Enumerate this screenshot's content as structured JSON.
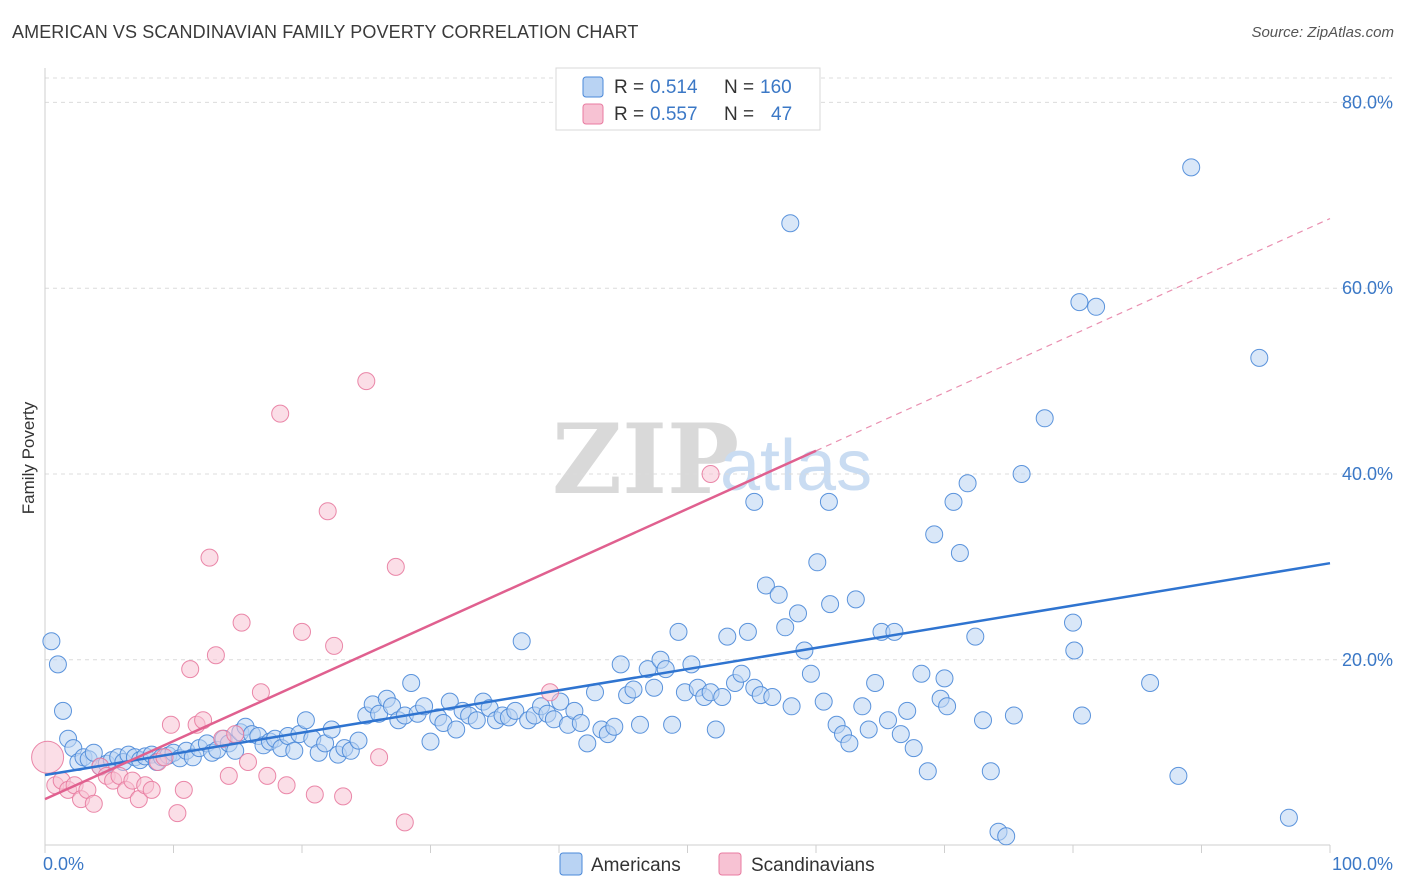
{
  "title": "AMERICAN VS SCANDINAVIAN FAMILY POVERTY CORRELATION CHART",
  "source": "Source: ZipAtlas.com",
  "watermark": {
    "zip": "ZIP",
    "atlas": "atlas"
  },
  "colors": {
    "americans": "#4a88d8",
    "americans_fill": "#b9d3f3",
    "americans_line": "#2f74d0",
    "scandinavians": "#e87ba0",
    "scandinavians_fill": "#f7c2d3",
    "scandinavians_line": "#e0608f",
    "grid": "#dcdcdc",
    "axis_text": "#3b78c6"
  },
  "legend": {
    "rows": [
      {
        "r_label": "R = ",
        "r_value": "0.514",
        "n_label": "N = ",
        "n_value": "160"
      },
      {
        "r_label": "R = ",
        "r_value": "0.557",
        "n_label": "N = ",
        "n_value": "47"
      }
    ]
  },
  "bottom_legend": {
    "americans": "Americans",
    "scandinavians": "Scandinavians"
  },
  "chart_data": {
    "type": "scatter",
    "title": "AMERICAN VS SCANDINAVIAN FAMILY POVERTY CORRELATION CHART",
    "xlabel": "",
    "ylabel": "Family Poverty",
    "xlim": [
      0,
      100
    ],
    "ylim": [
      0,
      80
    ],
    "x_tick_labels": [
      "0.0%",
      "100.0%"
    ],
    "y_ticks": [
      20,
      40,
      60,
      80
    ],
    "y_tick_labels": [
      "20.0%",
      "40.0%",
      "60.0%",
      "80.0%"
    ],
    "grid": true,
    "series": [
      {
        "name": "Americans",
        "R": 0.514,
        "N": 160,
        "trend": {
          "x": [
            0,
            100
          ],
          "y": [
            7.6,
            30.4
          ],
          "dashed_extension": false
        },
        "points": [
          [
            0.5,
            22.0
          ],
          [
            1.0,
            19.5
          ],
          [
            1.4,
            14.5
          ],
          [
            1.8,
            11.5
          ],
          [
            2.2,
            10.5
          ],
          [
            2.6,
            9.0
          ],
          [
            3.0,
            9.5
          ],
          [
            3.4,
            9.3
          ],
          [
            3.8,
            10.0
          ],
          [
            4.3,
            8.5
          ],
          [
            4.8,
            8.8
          ],
          [
            5.2,
            9.2
          ],
          [
            5.7,
            9.5
          ],
          [
            6.1,
            9.0
          ],
          [
            6.5,
            9.8
          ],
          [
            7.0,
            9.5
          ],
          [
            7.4,
            9.2
          ],
          [
            7.8,
            9.6
          ],
          [
            8.3,
            9.8
          ],
          [
            8.7,
            9.0
          ],
          [
            9.1,
            9.5
          ],
          [
            9.6,
            9.7
          ],
          [
            10.0,
            10.0
          ],
          [
            10.5,
            9.4
          ],
          [
            11.0,
            10.2
          ],
          [
            11.5,
            9.5
          ],
          [
            12.0,
            10.5
          ],
          [
            12.6,
            11.0
          ],
          [
            13.0,
            10.0
          ],
          [
            13.4,
            10.3
          ],
          [
            13.9,
            11.5
          ],
          [
            14.3,
            11.0
          ],
          [
            14.8,
            10.2
          ],
          [
            15.2,
            12.2
          ],
          [
            15.6,
            12.8
          ],
          [
            16.1,
            12.0
          ],
          [
            16.6,
            11.8
          ],
          [
            17.0,
            10.8
          ],
          [
            17.5,
            11.2
          ],
          [
            17.9,
            11.5
          ],
          [
            18.4,
            10.5
          ],
          [
            18.9,
            11.8
          ],
          [
            19.4,
            10.2
          ],
          [
            19.8,
            12.0
          ],
          [
            20.3,
            13.5
          ],
          [
            20.8,
            11.5
          ],
          [
            21.3,
            10.0
          ],
          [
            21.8,
            11.0
          ],
          [
            22.3,
            12.5
          ],
          [
            22.8,
            9.8
          ],
          [
            23.3,
            10.5
          ],
          [
            23.8,
            10.2
          ],
          [
            24.4,
            11.3
          ],
          [
            25.0,
            14.0
          ],
          [
            25.5,
            15.2
          ],
          [
            26.0,
            14.2
          ],
          [
            26.6,
            15.8
          ],
          [
            27.0,
            15.0
          ],
          [
            27.5,
            13.5
          ],
          [
            28.0,
            14.0
          ],
          [
            28.5,
            17.5
          ],
          [
            29.0,
            14.2
          ],
          [
            29.5,
            15.0
          ],
          [
            30.0,
            11.2
          ],
          [
            30.6,
            13.8
          ],
          [
            31.0,
            13.2
          ],
          [
            31.5,
            15.5
          ],
          [
            32.0,
            12.5
          ],
          [
            32.5,
            14.5
          ],
          [
            33.0,
            14.0
          ],
          [
            33.6,
            13.5
          ],
          [
            34.1,
            15.5
          ],
          [
            34.6,
            14.8
          ],
          [
            35.1,
            13.5
          ],
          [
            35.6,
            14.0
          ],
          [
            36.1,
            13.8
          ],
          [
            36.6,
            14.5
          ],
          [
            37.1,
            22.0
          ],
          [
            37.6,
            13.5
          ],
          [
            38.1,
            14.0
          ],
          [
            38.6,
            15.0
          ],
          [
            39.1,
            14.2
          ],
          [
            39.6,
            13.6
          ],
          [
            40.1,
            15.5
          ],
          [
            40.7,
            13.0
          ],
          [
            41.2,
            14.5
          ],
          [
            41.7,
            13.2
          ],
          [
            42.2,
            11.0
          ],
          [
            42.8,
            16.5
          ],
          [
            43.3,
            12.5
          ],
          [
            43.8,
            12.0
          ],
          [
            44.3,
            12.8
          ],
          [
            44.8,
            19.5
          ],
          [
            45.3,
            16.2
          ],
          [
            45.8,
            16.8
          ],
          [
            46.3,
            13.0
          ],
          [
            46.9,
            19.0
          ],
          [
            47.4,
            17.0
          ],
          [
            47.9,
            20.0
          ],
          [
            48.3,
            19.0
          ],
          [
            48.8,
            13.0
          ],
          [
            49.3,
            23.0
          ],
          [
            49.8,
            16.5
          ],
          [
            50.3,
            19.5
          ],
          [
            50.8,
            17.0
          ],
          [
            51.3,
            16.0
          ],
          [
            51.8,
            16.5
          ],
          [
            52.2,
            12.5
          ],
          [
            52.7,
            16.0
          ],
          [
            53.1,
            22.5
          ],
          [
            53.7,
            17.5
          ],
          [
            54.2,
            18.5
          ],
          [
            54.7,
            23.0
          ],
          [
            55.2,
            17.0
          ],
          [
            55.7,
            16.2
          ],
          [
            56.1,
            28.0
          ],
          [
            56.6,
            16.0
          ],
          [
            57.1,
            27.0
          ],
          [
            57.6,
            23.5
          ],
          [
            58.1,
            15.0
          ],
          [
            58.6,
            25.0
          ],
          [
            59.1,
            21.0
          ],
          [
            59.6,
            18.5
          ],
          [
            60.1,
            30.5
          ],
          [
            60.6,
            15.5
          ],
          [
            61.1,
            26.0
          ],
          [
            61.6,
            13.0
          ],
          [
            62.1,
            12.0
          ],
          [
            62.6,
            11.0
          ],
          [
            63.1,
            26.5
          ],
          [
            63.6,
            15.0
          ],
          [
            64.1,
            12.5
          ],
          [
            64.6,
            17.5
          ],
          [
            65.1,
            23.0
          ],
          [
            65.6,
            13.5
          ],
          [
            66.1,
            23.0
          ],
          [
            66.6,
            12.0
          ],
          [
            67.1,
            14.5
          ],
          [
            67.6,
            10.5
          ],
          [
            68.2,
            18.5
          ],
          [
            68.7,
            8.0
          ],
          [
            69.2,
            33.5
          ],
          [
            69.7,
            15.8
          ],
          [
            70.2,
            15.0
          ],
          [
            70.7,
            37.0
          ],
          [
            71.2,
            31.5
          ],
          [
            71.8,
            39.0
          ],
          [
            72.4,
            22.5
          ],
          [
            73.0,
            13.5
          ],
          [
            73.6,
            8.0
          ],
          [
            74.2,
            1.5
          ],
          [
            74.8,
            1.0
          ],
          [
            75.4,
            14.0
          ],
          [
            76.0,
            40.0
          ],
          [
            77.8,
            46.0
          ],
          [
            80.0,
            24.0
          ],
          [
            55.2,
            37.0
          ],
          [
            58.0,
            67.0
          ],
          [
            61.0,
            37.0
          ],
          [
            89.2,
            73.0
          ],
          [
            94.5,
            52.5
          ],
          [
            80.5,
            58.5
          ],
          [
            81.8,
            58.0
          ],
          [
            80.1,
            21.0
          ],
          [
            86.0,
            17.5
          ],
          [
            88.2,
            7.5
          ],
          [
            96.8,
            3.0
          ],
          [
            70.0,
            18.0
          ],
          [
            80.7,
            14.0
          ]
        ]
      },
      {
        "name": "Scandinavians",
        "R": 0.557,
        "N": 47,
        "trend": {
          "x": [
            0,
            60
          ],
          "y": [
            5.0,
            42.5
          ],
          "dashed_to": [
            100,
            67.5
          ]
        },
        "points": [
          [
            0.2,
            9.5
          ],
          [
            0.8,
            6.5
          ],
          [
            1.3,
            7.0
          ],
          [
            1.8,
            6.0
          ],
          [
            2.3,
            6.5
          ],
          [
            2.8,
            5.0
          ],
          [
            3.3,
            6.0
          ],
          [
            3.8,
            4.5
          ],
          [
            4.3,
            8.5
          ],
          [
            4.8,
            7.5
          ],
          [
            5.3,
            7.0
          ],
          [
            5.8,
            7.5
          ],
          [
            6.3,
            6.0
          ],
          [
            6.8,
            7.0
          ],
          [
            7.3,
            5.0
          ],
          [
            7.8,
            6.5
          ],
          [
            8.3,
            6.0
          ],
          [
            8.8,
            9.0
          ],
          [
            9.3,
            9.5
          ],
          [
            9.8,
            13.0
          ],
          [
            10.3,
            3.5
          ],
          [
            10.8,
            6.0
          ],
          [
            11.3,
            19.0
          ],
          [
            11.8,
            13.0
          ],
          [
            12.3,
            13.5
          ],
          [
            12.8,
            31.0
          ],
          [
            13.3,
            20.5
          ],
          [
            13.8,
            11.5
          ],
          [
            14.3,
            7.5
          ],
          [
            14.8,
            12.0
          ],
          [
            15.3,
            24.0
          ],
          [
            15.8,
            9.0
          ],
          [
            16.8,
            16.5
          ],
          [
            17.3,
            7.5
          ],
          [
            18.3,
            46.5
          ],
          [
            18.8,
            6.5
          ],
          [
            20.0,
            23.0
          ],
          [
            21.0,
            5.5
          ],
          [
            22.0,
            36.0
          ],
          [
            22.5,
            21.5
          ],
          [
            23.2,
            5.3
          ],
          [
            25.0,
            50.0
          ],
          [
            26.0,
            9.5
          ],
          [
            27.3,
            30.0
          ],
          [
            28.0,
            2.5
          ],
          [
            39.3,
            16.5
          ],
          [
            51.8,
            40.0
          ]
        ]
      }
    ]
  }
}
